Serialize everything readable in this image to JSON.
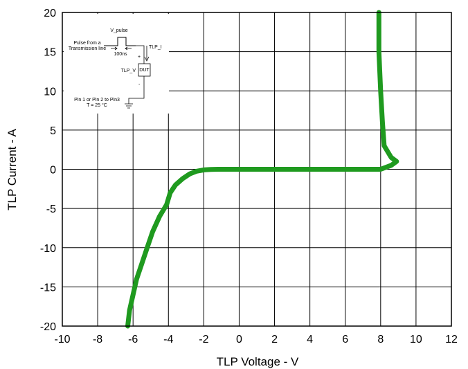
{
  "chart_data": {
    "type": "line",
    "title": "",
    "xlabel": "TLP Voltage - V",
    "ylabel": "TLP Current - A",
    "xlim": [
      -10,
      12
    ],
    "ylim": [
      -20,
      20
    ],
    "xticks": [
      -10,
      -8,
      -6,
      -4,
      -2,
      0,
      2,
      4,
      6,
      8,
      10,
      12
    ],
    "yticks": [
      -20,
      -15,
      -10,
      -5,
      0,
      5,
      10,
      15,
      20
    ],
    "grid": true,
    "line_color": "#1f9a1f",
    "series": [
      {
        "name": "",
        "x": [
          -6.3,
          -6.2,
          -6.0,
          -5.8,
          -5.5,
          -5.2,
          -4.9,
          -4.5,
          -4.1,
          -3.9,
          -3.6,
          -3.2,
          -2.8,
          -2.4,
          -2.0,
          -1.6,
          -1.2,
          -0.8,
          0,
          2,
          4,
          6,
          7.0,
          8.0,
          8.6,
          8.9,
          8.6,
          8.2,
          8.1,
          8.0,
          7.9,
          7.9
        ],
        "y": [
          -20,
          -18,
          -16,
          -14,
          -12,
          -10,
          -8,
          -6,
          -4.5,
          -3,
          -2,
          -1.2,
          -0.6,
          -0.25,
          -0.08,
          -0.02,
          0,
          0,
          0,
          0,
          0,
          0,
          0,
          0,
          0.5,
          1.0,
          1.5,
          3,
          6,
          10,
          15,
          20
        ]
      }
    ]
  },
  "inset": {
    "v_pulse": "V_pulse",
    "pulse_source_line1": "Pulse from a",
    "pulse_source_line2": "Transmission line",
    "pulse_width": "100ns",
    "tlp_i": "TLP_I",
    "tlp_v": "TLP_V",
    "dut": "DUT",
    "plus": "+",
    "minus": "-",
    "pins": "Pin 1 or Pin 2 to Pin3",
    "temperature": "T = 25 °C"
  }
}
